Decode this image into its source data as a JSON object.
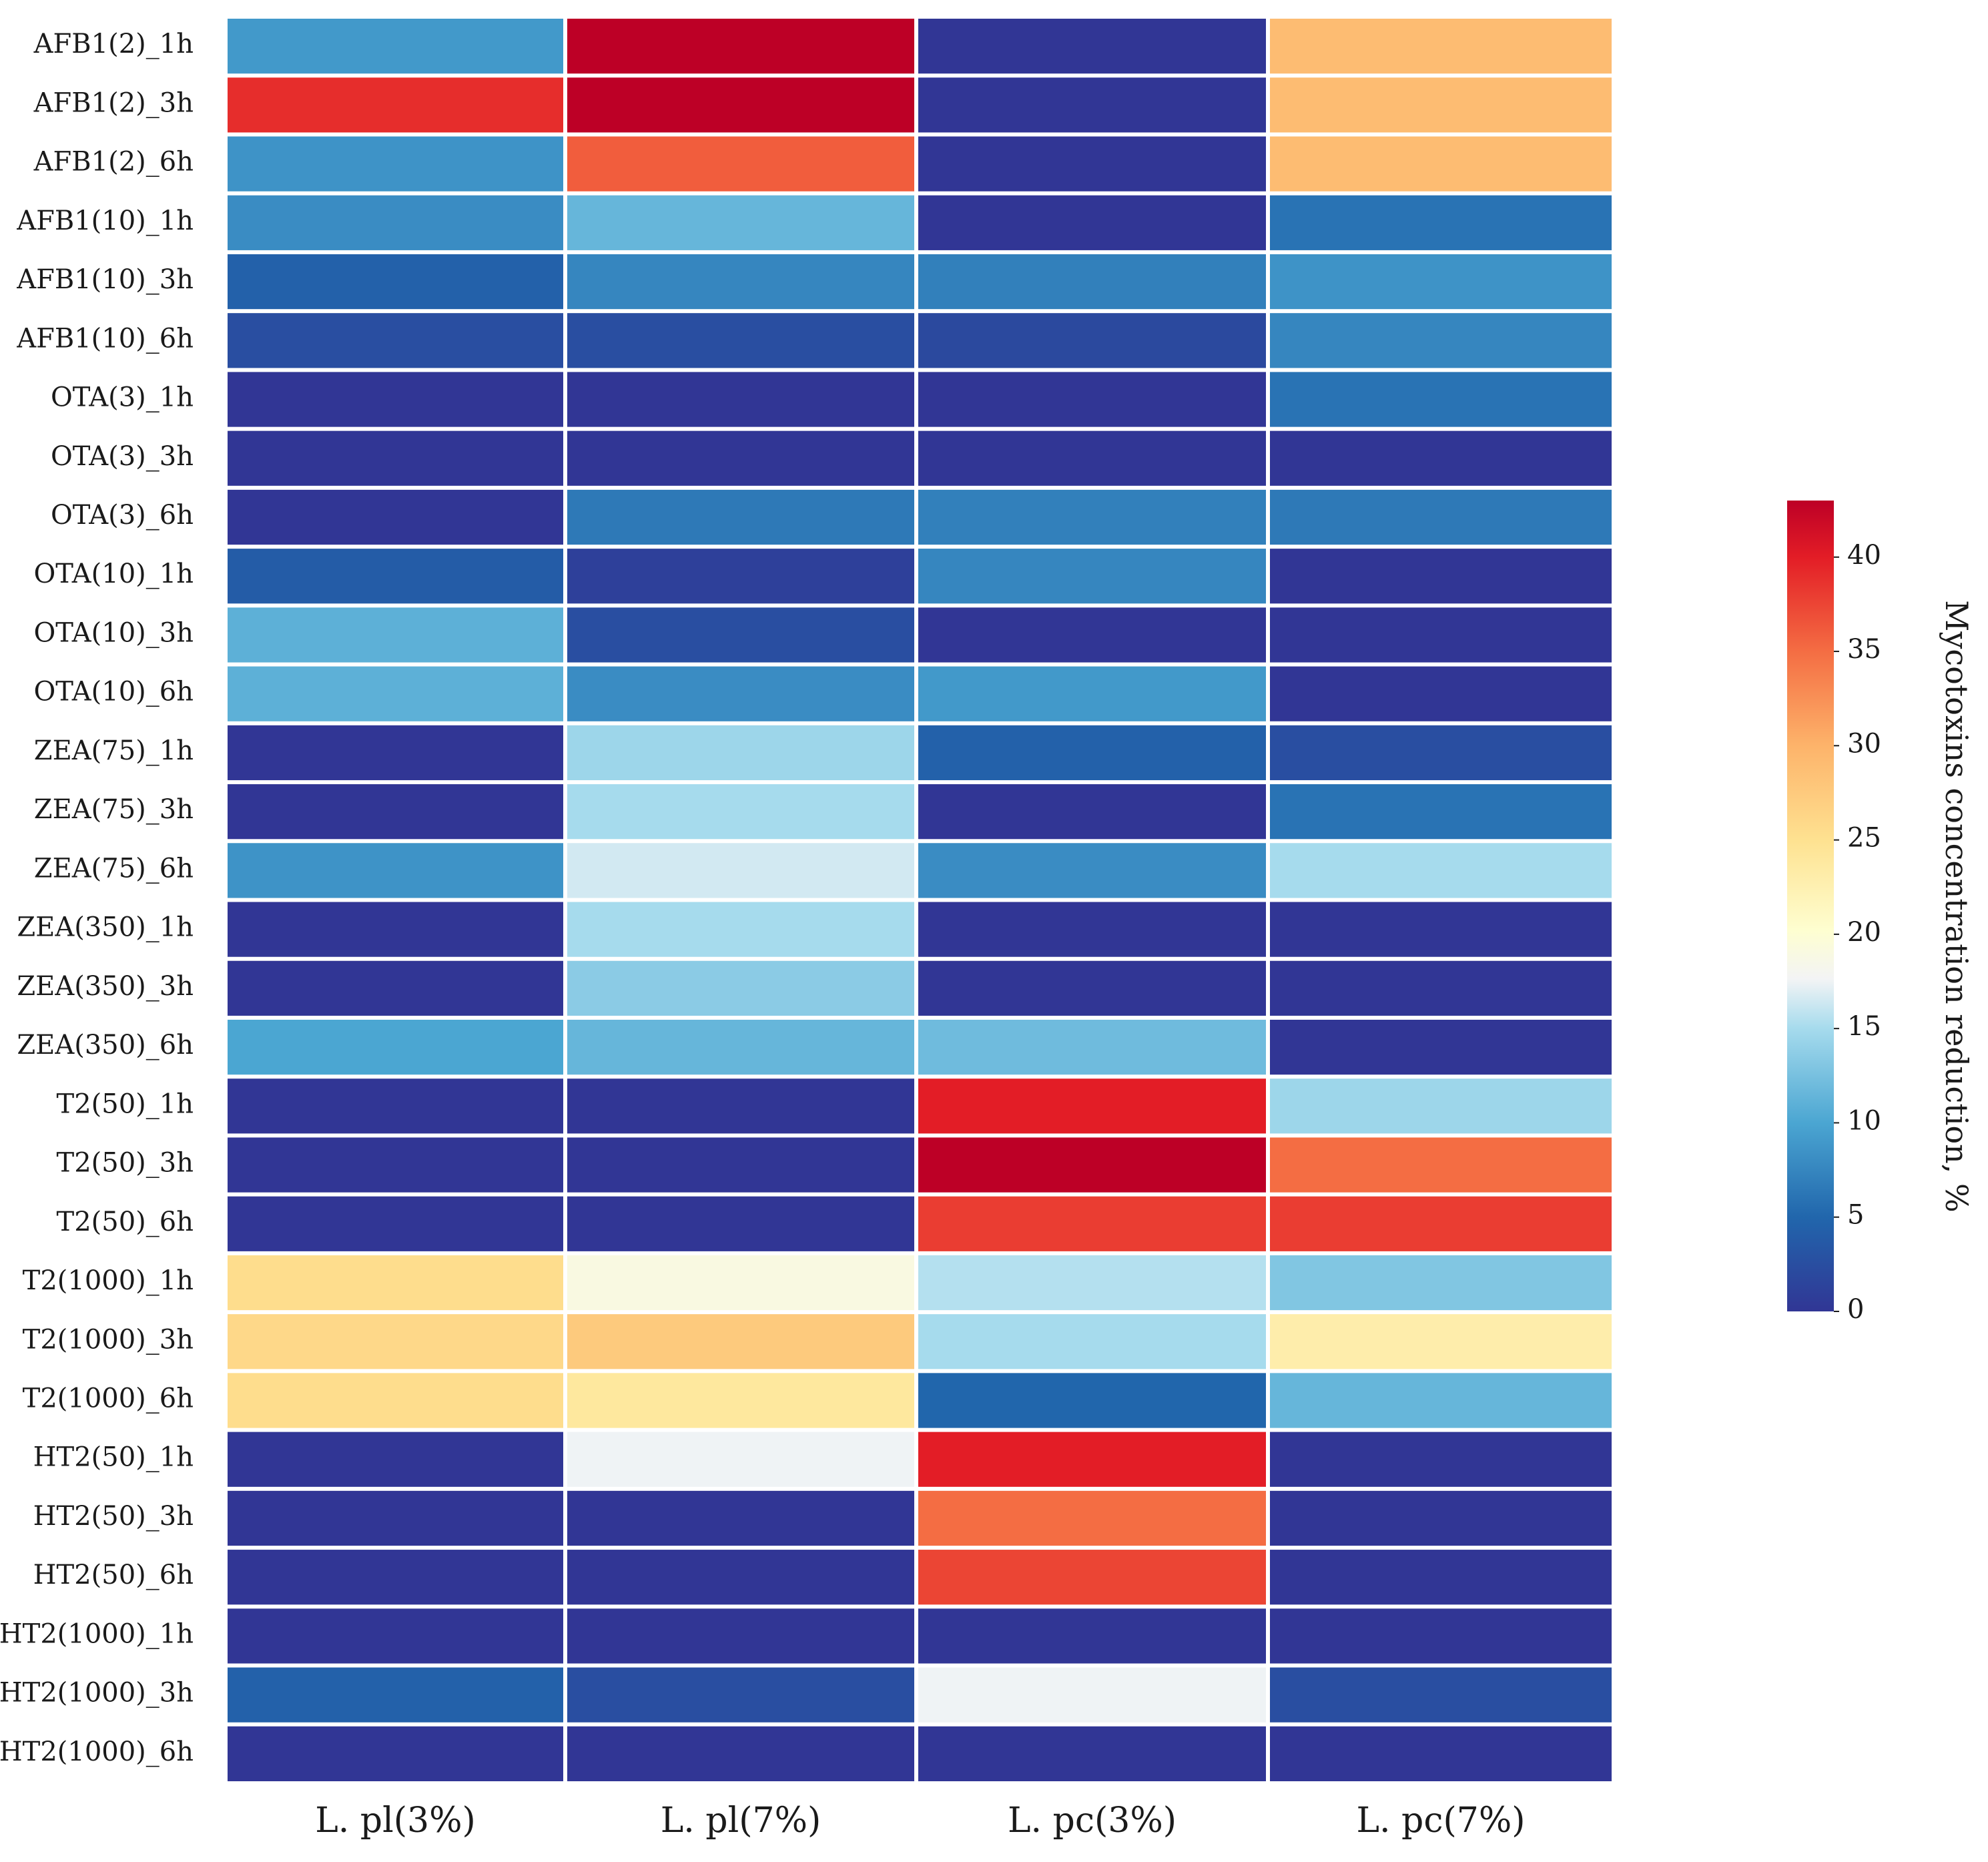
{
  "chart_data": {
    "type": "heatmap",
    "title": "",
    "colorbar_label": "Mycotoxins concentration reduction, %",
    "colorbar_ticks": [
      0,
      5,
      10,
      15,
      20,
      25,
      30,
      35,
      40
    ],
    "colorbar_range": [
      0,
      43
    ],
    "columns": [
      "L. pl(3%)",
      "L. pl(7%)",
      "L. pc(3%)",
      "L. pc(7%)"
    ],
    "rows": [
      "AFB1(2)_1h",
      "AFB1(2)_3h",
      "AFB1(2)_6h",
      "AFB1(10)_1h",
      "AFB1(10)_3h",
      "AFB1(10)_6h",
      "OTA(3)_1h",
      "OTA(3)_3h",
      "OTA(3)_6h",
      "OTA(10)_1h",
      "OTA(10)_3h",
      "OTA(10)_6h",
      "ZEA(75)_1h",
      "ZEA(75)_3h",
      "ZEA(75)_6h",
      "ZEA(350)_1h",
      "ZEA(350)_3h",
      "ZEA(350)_6h",
      "T2(50)_1h",
      "T2(50)_3h",
      "T2(50)_6h",
      "T2(1000)_1h",
      "T2(1000)_3h",
      "T2(1000)_6h",
      "HT2(50)_1h",
      "HT2(50)_3h",
      "HT2(50)_6h",
      "HT2(1000)_1h",
      "HT2(1000)_3h",
      "HT2(1000)_6h"
    ],
    "values": [
      [
        9,
        43,
        0,
        29
      ],
      [
        39,
        43,
        0,
        29
      ],
      [
        8.5,
        36,
        0,
        29
      ],
      [
        8,
        11.5,
        0,
        6
      ],
      [
        4.5,
        7.5,
        7,
        8.5
      ],
      [
        2.5,
        2.5,
        2,
        7.5
      ],
      [
        0,
        0,
        0,
        6
      ],
      [
        0,
        0,
        0,
        0
      ],
      [
        0,
        6.5,
        7,
        6.5
      ],
      [
        4,
        1,
        7.5,
        0
      ],
      [
        11,
        2.5,
        0,
        0
      ],
      [
        11,
        8,
        9,
        0
      ],
      [
        0,
        14.5,
        4.5,
        2.5
      ],
      [
        0,
        15,
        0,
        6
      ],
      [
        8.5,
        16.5,
        8,
        15
      ],
      [
        0,
        15,
        0,
        0
      ],
      [
        0,
        13.5,
        0,
        0
      ],
      [
        10,
        11.5,
        12,
        0
      ],
      [
        0,
        0,
        40,
        14.5
      ],
      [
        0,
        0,
        43,
        35
      ],
      [
        0,
        0,
        38,
        38
      ],
      [
        25.5,
        19,
        15.5,
        13
      ],
      [
        26,
        27.5,
        15,
        23
      ],
      [
        25.5,
        24,
        5,
        11.5
      ],
      [
        0,
        17.5,
        40,
        0
      ],
      [
        0,
        0,
        35,
        0
      ],
      [
        0,
        0,
        37.5,
        0
      ],
      [
        0,
        0,
        0,
        0
      ],
      [
        4.5,
        2.5,
        17.5,
        2.5
      ],
      [
        0,
        0,
        0,
        0
      ]
    ]
  }
}
